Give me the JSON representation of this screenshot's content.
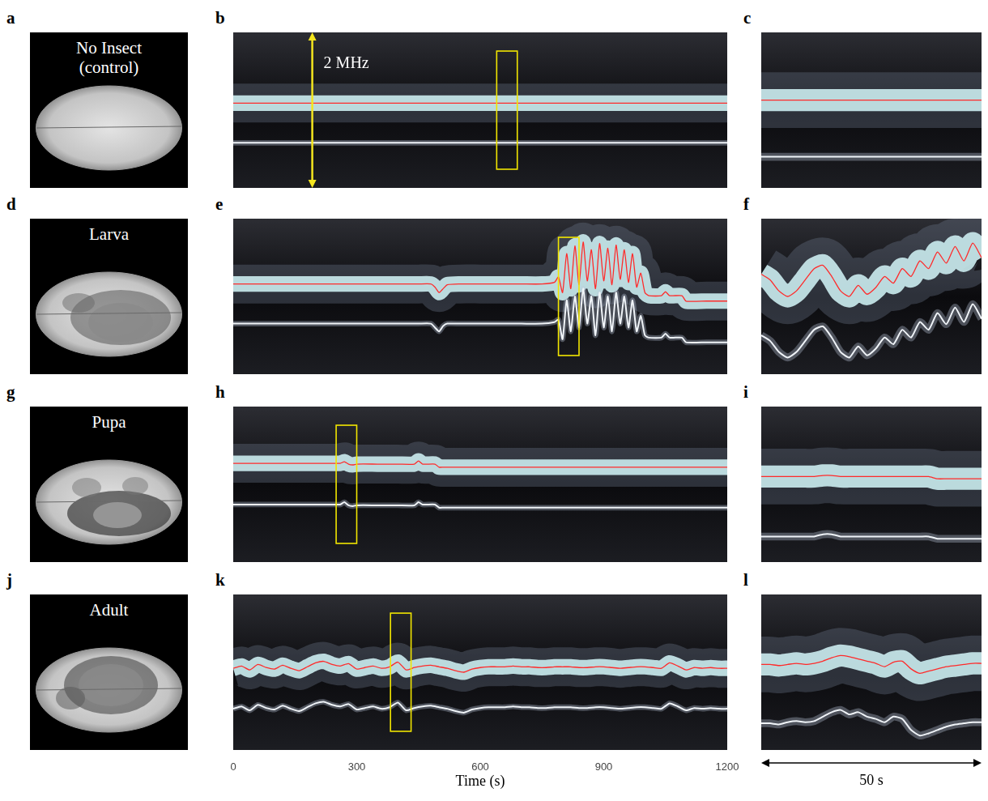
{
  "images": [
    {
      "panel": "a",
      "label": "No Insect (control)"
    },
    {
      "panel": "d",
      "label": "Larva"
    },
    {
      "panel": "g",
      "label": "Pupa"
    },
    {
      "panel": "j",
      "label": "Adult"
    }
  ],
  "chart_data": [
    {
      "type": "line",
      "title": "b",
      "x": [
        0,
        100,
        200,
        300,
        400,
        500,
        600,
        700,
        800,
        900,
        1000,
        1100,
        1200
      ],
      "xlim": [
        0,
        1200
      ],
      "ylim": [
        -1,
        1
      ],
      "tick_labels": false,
      "window": [
        640,
        690
      ],
      "annotations": [
        {
          "text": "2 MHz",
          "y": [
            -1,
            1
          ]
        }
      ],
      "series": [
        {
          "color": "#ff2a2a",
          "values": [
            0.09,
            0.09,
            0.09,
            0.09,
            0.09,
            0.09,
            0.09,
            0.09,
            0.09,
            0.09,
            0.09,
            0.09,
            0.09
          ]
        },
        {
          "color": "#f0f4f8",
          "values": [
            -0.42,
            -0.42,
            -0.42,
            -0.42,
            -0.42,
            -0.42,
            -0.42,
            -0.42,
            -0.42,
            -0.42,
            -0.42,
            -0.42,
            -0.42
          ]
        }
      ]
    },
    {
      "type": "line",
      "title": "c",
      "x": [
        640,
        650,
        660,
        670,
        680,
        690
      ],
      "xlim": [
        640,
        690
      ],
      "ylim": [
        -0.7,
        0.7
      ],
      "tick_labels": false,
      "series": [
        {
          "color": "#ff2a2a",
          "values": [
            0.09,
            0.09,
            0.09,
            0.09,
            0.09,
            0.09
          ]
        },
        {
          "color": "#f0f4f8",
          "values": [
            -0.42,
            -0.42,
            -0.42,
            -0.42,
            -0.42,
            -0.42
          ]
        }
      ]
    },
    {
      "type": "line",
      "title": "e",
      "x": [
        0,
        50,
        100,
        150,
        200,
        250,
        300,
        350,
        400,
        450,
        480,
        490,
        500,
        510,
        520,
        550,
        600,
        650,
        700,
        750,
        780,
        790,
        800,
        810,
        820,
        830,
        840,
        850,
        860,
        870,
        880,
        890,
        900,
        910,
        920,
        930,
        940,
        950,
        960,
        970,
        980,
        990,
        1000,
        1010,
        1040,
        1050,
        1060,
        1090,
        1100,
        1150,
        1200
      ],
      "xlim": [
        0,
        1200
      ],
      "ylim": [
        -1,
        1
      ],
      "tick_labels": false,
      "window": [
        790,
        840
      ],
      "series": [
        {
          "color": "#ff2a2a",
          "values": [
            0.16,
            0.16,
            0.16,
            0.16,
            0.16,
            0.16,
            0.16,
            0.16,
            0.16,
            0.16,
            0.16,
            0.12,
            0.05,
            0.1,
            0.15,
            0.16,
            0.16,
            0.16,
            0.16,
            0.16,
            0.18,
            0.25,
            0.05,
            0.55,
            0.1,
            0.65,
            0.15,
            0.7,
            0.2,
            0.6,
            0.1,
            0.68,
            0.2,
            0.62,
            0.15,
            0.66,
            0.22,
            0.6,
            0.18,
            0.55,
            0.12,
            0.3,
            0.05,
            0.01,
            0.01,
            0.06,
            0.01,
            0.01,
            -0.06,
            -0.06,
            -0.06
          ]
        },
        {
          "color": "#f0f4f8",
          "values": [
            -0.35,
            -0.35,
            -0.35,
            -0.35,
            -0.35,
            -0.35,
            -0.35,
            -0.35,
            -0.35,
            -0.35,
            -0.35,
            -0.4,
            -0.45,
            -0.38,
            -0.35,
            -0.35,
            -0.35,
            -0.35,
            -0.35,
            -0.35,
            -0.33,
            -0.3,
            -0.55,
            -0.05,
            -0.45,
            0.0,
            -0.4,
            0.1,
            -0.35,
            0.0,
            -0.5,
            0.05,
            -0.4,
            0.0,
            -0.45,
            0.05,
            -0.35,
            0.0,
            -0.4,
            -0.05,
            -0.45,
            -0.25,
            -0.5,
            -0.53,
            -0.53,
            -0.48,
            -0.53,
            -0.53,
            -0.59,
            -0.59,
            -0.59
          ]
        }
      ]
    },
    {
      "type": "line",
      "title": "f",
      "x": [
        790,
        792,
        794,
        796,
        798,
        800,
        802,
        804,
        806,
        808,
        810,
        812,
        814,
        816,
        818,
        820,
        822,
        824,
        826,
        828,
        830,
        832,
        834,
        836,
        838,
        840
      ],
      "xlim": [
        790,
        840
      ],
      "ylim": [
        -0.7,
        0.7
      ],
      "tick_labels": false,
      "series": [
        {
          "color": "#ff2a2a",
          "values": [
            0.2,
            0.15,
            0.05,
            0.0,
            0.05,
            0.15,
            0.25,
            0.28,
            0.18,
            0.05,
            0.0,
            0.1,
            0.02,
            0.08,
            0.18,
            0.12,
            0.25,
            0.18,
            0.32,
            0.25,
            0.4,
            0.3,
            0.45,
            0.32,
            0.48,
            0.35
          ]
        },
        {
          "color": "#f0f4f8",
          "values": [
            -0.35,
            -0.4,
            -0.5,
            -0.55,
            -0.5,
            -0.4,
            -0.3,
            -0.27,
            -0.37,
            -0.5,
            -0.55,
            -0.45,
            -0.53,
            -0.47,
            -0.37,
            -0.43,
            -0.3,
            -0.37,
            -0.23,
            -0.3,
            -0.15,
            -0.25,
            -0.1,
            -0.23,
            -0.07,
            -0.2
          ]
        }
      ]
    },
    {
      "type": "line",
      "title": "h",
      "x": [
        0,
        50,
        100,
        150,
        200,
        250,
        260,
        270,
        280,
        290,
        300,
        350,
        400,
        440,
        450,
        460,
        490,
        500,
        510,
        550,
        600,
        700,
        800,
        900,
        1000,
        1100,
        1200
      ],
      "xlim": [
        0,
        1200
      ],
      "ylim": [
        -1,
        1
      ],
      "tick_labels": false,
      "window": [
        250,
        300
      ],
      "series": [
        {
          "color": "#ff2a2a",
          "values": [
            0.27,
            0.27,
            0.27,
            0.27,
            0.27,
            0.27,
            0.27,
            0.29,
            0.26,
            0.25,
            0.26,
            0.26,
            0.26,
            0.26,
            0.3,
            0.26,
            0.26,
            0.22,
            0.22,
            0.22,
            0.22,
            0.22,
            0.22,
            0.22,
            0.22,
            0.22,
            0.22
          ]
        },
        {
          "color": "#f0f4f8",
          "values": [
            -0.26,
            -0.26,
            -0.26,
            -0.26,
            -0.26,
            -0.26,
            -0.26,
            -0.23,
            -0.27,
            -0.28,
            -0.27,
            -0.27,
            -0.27,
            -0.27,
            -0.23,
            -0.26,
            -0.26,
            -0.3,
            -0.3,
            -0.3,
            -0.3,
            -0.3,
            -0.3,
            -0.3,
            -0.3,
            -0.3,
            -0.3
          ]
        }
      ]
    },
    {
      "type": "line",
      "title": "i",
      "x": [
        250,
        252,
        254,
        256,
        258,
        260,
        262,
        264,
        266,
        268,
        270,
        272,
        274,
        276,
        278,
        280,
        282,
        284,
        286,
        288,
        290,
        292,
        294,
        296,
        298,
        300
      ],
      "xlim": [
        250,
        300
      ],
      "ylim": [
        -0.5,
        0.9
      ],
      "tick_labels": false,
      "series": [
        {
          "color": "#ff2a2a",
          "values": [
            0.27,
            0.27,
            0.27,
            0.27,
            0.27,
            0.27,
            0.27,
            0.28,
            0.28,
            0.27,
            0.27,
            0.27,
            0.27,
            0.27,
            0.27,
            0.27,
            0.27,
            0.27,
            0.27,
            0.27,
            0.25,
            0.25,
            0.25,
            0.25,
            0.25,
            0.25
          ]
        },
        {
          "color": "#f0f4f8",
          "values": [
            -0.27,
            -0.27,
            -0.27,
            -0.27,
            -0.27,
            -0.27,
            -0.27,
            -0.25,
            -0.25,
            -0.27,
            -0.27,
            -0.27,
            -0.27,
            -0.27,
            -0.27,
            -0.27,
            -0.27,
            -0.27,
            -0.27,
            -0.27,
            -0.29,
            -0.29,
            -0.29,
            -0.29,
            -0.29,
            -0.29
          ]
        }
      ]
    },
    {
      "type": "line",
      "title": "k",
      "x": [
        0,
        20,
        40,
        60,
        80,
        100,
        120,
        140,
        160,
        180,
        200,
        220,
        240,
        260,
        280,
        300,
        320,
        340,
        360,
        380,
        400,
        420,
        440,
        460,
        480,
        500,
        520,
        540,
        560,
        580,
        600,
        620,
        640,
        660,
        680,
        700,
        720,
        740,
        760,
        780,
        800,
        820,
        840,
        860,
        880,
        900,
        920,
        940,
        960,
        980,
        1000,
        1020,
        1040,
        1060,
        1080,
        1100,
        1120,
        1140,
        1160,
        1180,
        1200
      ],
      "xlim": [
        0,
        1200
      ],
      "xticks": [
        0,
        300,
        600,
        900,
        1200
      ],
      "ylim": [
        -1,
        1
      ],
      "x_label": "Time (s)",
      "tick_labels": "x",
      "window": [
        382,
        432
      ],
      "series": [
        {
          "color": "#ff2a2a",
          "values": [
            0.05,
            0.08,
            0.03,
            0.1,
            0.06,
            0.04,
            0.09,
            0.05,
            0.02,
            0.07,
            0.12,
            0.14,
            0.1,
            0.08,
            0.11,
            0.04,
            0.06,
            0.08,
            0.05,
            0.07,
            0.13,
            0.03,
            0.06,
            0.08,
            0.09,
            0.07,
            0.05,
            0.02,
            0.0,
            0.04,
            0.06,
            0.07,
            0.07,
            0.07,
            0.08,
            0.07,
            0.07,
            0.06,
            0.06,
            0.07,
            0.07,
            0.07,
            0.06,
            0.06,
            0.07,
            0.07,
            0.06,
            0.05,
            0.06,
            0.07,
            0.07,
            0.06,
            0.05,
            0.12,
            0.08,
            0.03,
            0.06,
            0.05,
            0.06,
            0.05,
            0.05
          ]
        },
        {
          "color": "#f0f4f8",
          "values": [
            -0.47,
            -0.44,
            -0.49,
            -0.42,
            -0.46,
            -0.48,
            -0.43,
            -0.47,
            -0.5,
            -0.45,
            -0.4,
            -0.38,
            -0.42,
            -0.44,
            -0.41,
            -0.48,
            -0.46,
            -0.44,
            -0.47,
            -0.45,
            -0.39,
            -0.49,
            -0.46,
            -0.44,
            -0.43,
            -0.45,
            -0.47,
            -0.5,
            -0.52,
            -0.48,
            -0.46,
            -0.45,
            -0.45,
            -0.45,
            -0.44,
            -0.45,
            -0.45,
            -0.46,
            -0.46,
            -0.45,
            -0.45,
            -0.45,
            -0.46,
            -0.46,
            -0.45,
            -0.45,
            -0.46,
            -0.47,
            -0.46,
            -0.45,
            -0.45,
            -0.46,
            -0.47,
            -0.4,
            -0.44,
            -0.49,
            -0.46,
            -0.47,
            -0.46,
            -0.47,
            -0.47
          ]
        }
      ]
    },
    {
      "type": "line",
      "title": "l",
      "x": [
        382,
        384,
        386,
        388,
        390,
        392,
        394,
        396,
        398,
        400,
        402,
        404,
        406,
        408,
        410,
        412,
        414,
        416,
        418,
        420,
        422,
        424,
        426,
        428,
        430,
        432
      ],
      "xlim": [
        382,
        432
      ],
      "ylim": [
        -0.7,
        0.7
      ],
      "tick_labels": false,
      "annotations": [
        {
          "text": "50 s",
          "x": [
            382,
            432
          ]
        }
      ],
      "series": [
        {
          "color": "#ff2a2a",
          "values": [
            0.07,
            0.07,
            0.06,
            0.07,
            0.08,
            0.07,
            0.08,
            0.1,
            0.13,
            0.15,
            0.14,
            0.12,
            0.1,
            0.08,
            0.05,
            0.09,
            0.1,
            0.03,
            -0.01,
            0.01,
            0.03,
            0.05,
            0.06,
            0.07,
            0.08,
            0.08
          ]
        },
        {
          "color": "#f0f4f8",
          "values": [
            -0.46,
            -0.46,
            -0.47,
            -0.45,
            -0.44,
            -0.45,
            -0.44,
            -0.4,
            -0.36,
            -0.34,
            -0.38,
            -0.36,
            -0.4,
            -0.42,
            -0.45,
            -0.4,
            -0.42,
            -0.52,
            -0.57,
            -0.55,
            -0.52,
            -0.49,
            -0.47,
            -0.46,
            -0.45,
            -0.45
          ]
        }
      ]
    }
  ]
}
